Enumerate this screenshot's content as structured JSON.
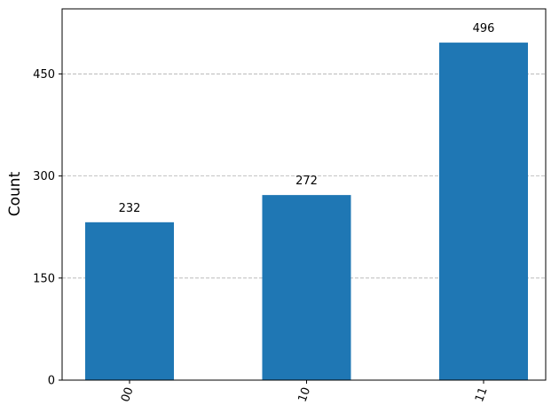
{
  "chart_data": {
    "type": "bar",
    "y_label": "Count",
    "categories": [
      "00",
      "10",
      "11"
    ],
    "values": [
      232,
      272,
      496
    ],
    "color": "#1f77b4",
    "ylim": [
      0,
      545.6
    ],
    "yticks": [
      0,
      150,
      300,
      450
    ],
    "grid": true
  }
}
